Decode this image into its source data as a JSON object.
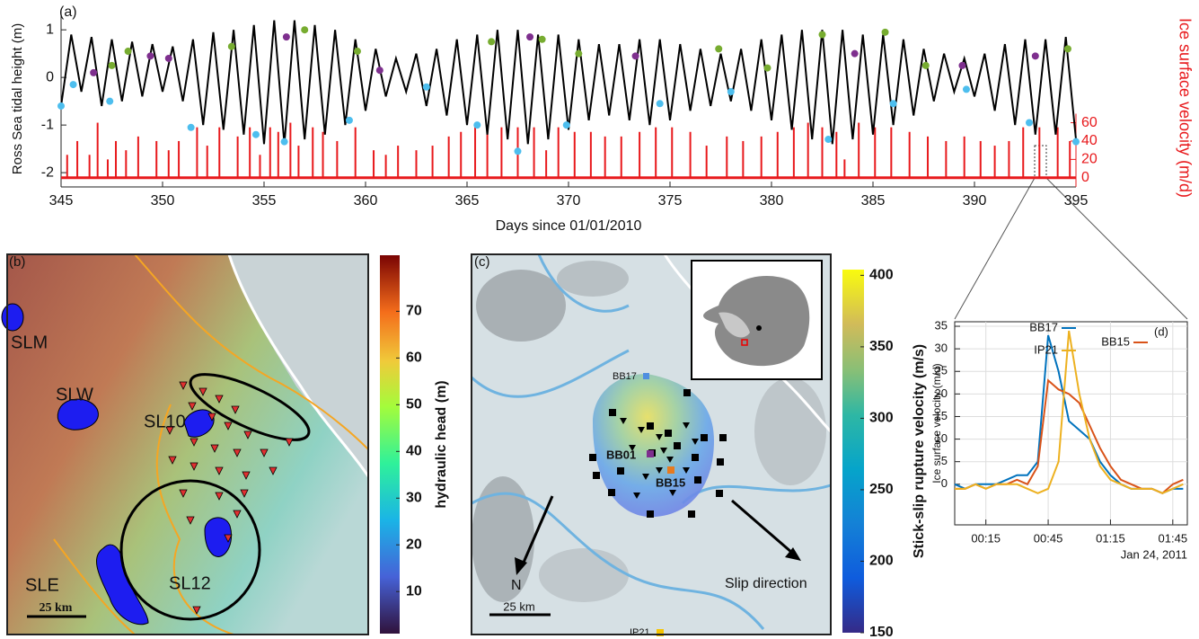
{
  "chart_data": [
    {
      "type": "line",
      "panel": "(a)",
      "ylabel": "Ross Sea tidal height (m)",
      "y2label": "Ice surface velocity (m/d)",
      "xlabel": "Days since 01/01/2010",
      "xlim": [
        345,
        395
      ],
      "xticks": [
        345,
        350,
        355,
        360,
        365,
        370,
        375,
        380,
        385,
        390,
        395
      ],
      "ylim": [
        -2.3,
        1.4
      ],
      "yticks": [
        -2,
        -1,
        0,
        1
      ],
      "y2lim": [
        -10,
        182
      ],
      "y2ticks": [
        0,
        20,
        40,
        60
      ],
      "series": [
        {
          "color": "#e8191c",
          "axis": "y2",
          "style": "spikes",
          "x": [
            345.3,
            345.8,
            346.4,
            346.8,
            347.3,
            347.7,
            348.2,
            348.8,
            349.7,
            350.3,
            350.8,
            351.7,
            352.2,
            352.8,
            353.7,
            354.3,
            354.8,
            355.3,
            355.7,
            356.3,
            356.7,
            357.4,
            357.9,
            358.6,
            359.5,
            360.4,
            361.0,
            361.6,
            362.5,
            363.3,
            364.1,
            364.7,
            365.4,
            366.0,
            366.7,
            367.5,
            368.3,
            368.9,
            369.5,
            370.3,
            371.1,
            371.8,
            372.6,
            373.5,
            374.3,
            375.1,
            376.0,
            376.8,
            377.8,
            378.6,
            379.5,
            380.3,
            381.1,
            381.8,
            382.5,
            383.2,
            383.6,
            384.3,
            385.1,
            385.9,
            386.8,
            387.7,
            388.6,
            389.5,
            390.3,
            391.0,
            391.7,
            392.4,
            393.2,
            394.1,
            394.7
          ],
          "values": [
            25,
            40,
            25,
            60,
            20,
            40,
            30,
            45,
            40,
            30,
            40,
            55,
            35,
            55,
            45,
            55,
            25,
            55,
            50,
            60,
            35,
            55,
            50,
            40,
            55,
            30,
            25,
            35,
            30,
            35,
            45,
            50,
            55,
            50,
            55,
            55,
            55,
            30,
            55,
            50,
            50,
            45,
            45,
            50,
            55,
            55,
            50,
            35,
            45,
            40,
            45,
            50,
            55,
            60,
            55,
            50,
            20,
            60,
            55,
            55,
            50,
            45,
            40,
            45,
            40,
            35,
            40,
            55,
            55,
            55,
            40
          ]
        },
        {
          "color": "#000000",
          "x": [
            345,
            345.5,
            346,
            346.5,
            347,
            347.5,
            348,
            348.5,
            349,
            349.5,
            350,
            350.5,
            351,
            351.5,
            352,
            352.5,
            353,
            353.5,
            354,
            354.5,
            355,
            355.5,
            356,
            356.5,
            357,
            357.5,
            358,
            358.5,
            359,
            359.5,
            360,
            360.5,
            361,
            361.5,
            362,
            362.5,
            363,
            363.5,
            364,
            364.5,
            365,
            365.5,
            366,
            366.5,
            367,
            367.5,
            368,
            368.5,
            369,
            369.5,
            370,
            370.5,
            371,
            371.5,
            372,
            372.5,
            373,
            373.5,
            374,
            374.5,
            375,
            375.5,
            376,
            376.5,
            377,
            377.5,
            378,
            378.5,
            379,
            379.5,
            380,
            380.5,
            381,
            381.5,
            382,
            382.5,
            383,
            383.5,
            384,
            384.5,
            385,
            385.5,
            386,
            386.5,
            387,
            387.5,
            388,
            388.5,
            389,
            389.5,
            390,
            390.5,
            391,
            391.5,
            392,
            392.5,
            393,
            393.5,
            394,
            394.5,
            395
          ],
          "values": [
            -0.6,
            0.9,
            -0.3,
            0.85,
            -0.6,
            0.8,
            -0.5,
            0.75,
            -0.4,
            0.7,
            -0.3,
            0.65,
            -0.5,
            0.8,
            -1.0,
            0.95,
            -1.1,
            1.0,
            -1.2,
            1.1,
            -1.4,
            1.2,
            -1.4,
            1.2,
            -1.3,
            1.1,
            -1.2,
            1.0,
            -1.0,
            0.8,
            -0.7,
            0.6,
            -0.4,
            0.4,
            -0.3,
            0.5,
            -0.6,
            0.6,
            -0.8,
            0.8,
            -1.0,
            0.9,
            -1.2,
            1.0,
            -1.3,
            1.0,
            -1.4,
            0.9,
            -1.3,
            0.9,
            -1.1,
            0.8,
            -0.9,
            0.7,
            -0.8,
            0.7,
            -0.9,
            0.8,
            -1.0,
            0.8,
            -0.9,
            0.7,
            -0.7,
            0.6,
            -0.6,
            0.5,
            -0.5,
            0.6,
            -0.7,
            0.8,
            -0.9,
            0.9,
            -1.1,
            1.0,
            -1.3,
            1.0,
            -1.4,
            1.0,
            -1.3,
            0.9,
            -1.2,
            0.9,
            -1.0,
            0.8,
            -0.8,
            0.6,
            -0.5,
            0.5,
            -0.3,
            0.4,
            -0.4,
            0.5,
            -0.7,
            0.7,
            -1.0,
            0.8,
            -1.2,
            0.8,
            -1.2,
            0.85,
            -1.3
          ]
        },
        {
          "color": "#77ac30",
          "marker": "dot",
          "x": [
            347.5,
            348.3,
            353.4,
            357.0,
            359.6,
            366.2,
            368.7,
            370.5,
            377.4,
            379.8,
            382.5,
            385.6,
            387.6,
            394.6
          ],
          "values": [
            0.25,
            0.55,
            0.65,
            1.0,
            0.55,
            0.75,
            0.8,
            0.5,
            0.6,
            0.2,
            0.9,
            0.95,
            0.25,
            0.6
          ]
        },
        {
          "color": "#7e2f8e",
          "marker": "dot",
          "x": [
            346.6,
            349.4,
            350.3,
            356.1,
            360.7,
            368.1,
            373.3,
            384.1,
            389.4,
            393.0
          ],
          "values": [
            0.1,
            0.45,
            0.4,
            0.85,
            0.15,
            0.85,
            0.45,
            0.5,
            0.25,
            0.45
          ]
        },
        {
          "color": "#4dbeee",
          "marker": "dot",
          "x": [
            345.0,
            345.6,
            347.4,
            351.4,
            354.6,
            356.0,
            359.2,
            363.0,
            365.5,
            367.5,
            369.9,
            374.5,
            378.0,
            382.8,
            386.0,
            389.6,
            392.7,
            395.0
          ],
          "values": [
            -0.6,
            -0.15,
            -0.5,
            -1.05,
            -1.2,
            -1.35,
            -0.9,
            -0.2,
            -1.0,
            -1.55,
            -1.0,
            -0.55,
            -0.3,
            -1.3,
            -0.55,
            -0.25,
            -0.95,
            -1.35
          ]
        }
      ]
    },
    {
      "type": "map",
      "panel": "(b)",
      "labels": [
        "SLM",
        "SLW",
        "SL10",
        "SL12",
        "SLE"
      ],
      "scale": "25 km",
      "clabel": "hydraulic head (m)",
      "clim": [
        1,
        82
      ],
      "cticks": [
        10,
        20,
        30,
        40,
        50,
        60,
        70
      ]
    },
    {
      "type": "map",
      "panel": "(c)",
      "labels": [
        "BB17",
        "BB01",
        "BB15",
        "IP21"
      ],
      "north": "N",
      "slip": "Slip direction",
      "scale": "25 km",
      "clabel": "Stick-slip rupture velocity (m/s)",
      "clim": [
        150,
        404
      ],
      "cticks": [
        150,
        200,
        250,
        300,
        350,
        400
      ]
    },
    {
      "type": "line",
      "panel": "(d)",
      "ylabel": "Ice surface velocity (m/d)",
      "date_label": "Jan 24, 2011",
      "grid": true,
      "xlim": [
        0,
        112
      ],
      "xticks": [
        {
          "value": 15,
          "label": "00:15"
        },
        {
          "value": 45,
          "label": "00:45"
        },
        {
          "value": 75,
          "label": "01:15"
        },
        {
          "value": 105,
          "label": "01:45"
        }
      ],
      "ylim": [
        -9,
        36
      ],
      "yticks": [
        0,
        5,
        10,
        15,
        20,
        25,
        30,
        35
      ],
      "x": [
        0,
        5,
        10,
        15,
        20,
        25,
        30,
        35,
        40,
        45,
        50,
        55,
        60,
        65,
        70,
        75,
        80,
        85,
        90,
        95,
        100,
        105,
        110
      ],
      "series": [
        {
          "name": "BB17",
          "color": "#0072bd",
          "values": [
            0,
            -1,
            0,
            0,
            0,
            1,
            2,
            2,
            5,
            33,
            25,
            14,
            12,
            10,
            5,
            2,
            0,
            -1,
            -1,
            -1,
            -2,
            -1,
            -1
          ]
        },
        {
          "name": "BB15",
          "color": "#d95319",
          "values": [
            -1,
            -1,
            0,
            -1,
            0,
            0,
            1,
            0,
            4,
            23,
            21,
            20,
            18,
            13,
            8,
            4,
            1,
            0,
            -1,
            -1,
            -2,
            0,
            1
          ]
        },
        {
          "name": "IP21",
          "color": "#edb120",
          "values": [
            -1,
            -1,
            0,
            -1,
            0,
            0,
            0,
            -1,
            -2,
            -1,
            5,
            34,
            20,
            10,
            4,
            1,
            0,
            -1,
            -1,
            -1,
            -2,
            -1,
            0
          ]
        }
      ]
    }
  ]
}
